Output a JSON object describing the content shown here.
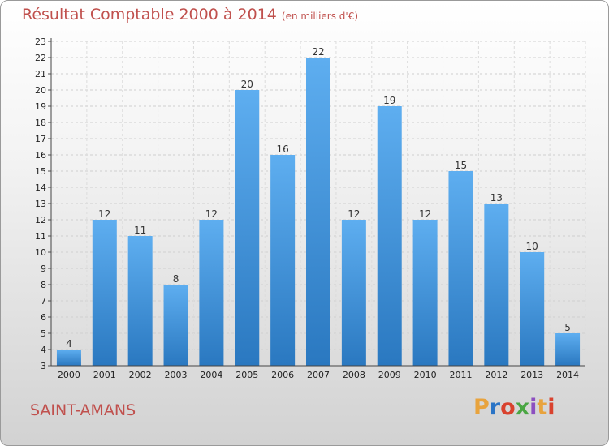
{
  "header": {
    "title": "Résultat Comptable 2000 à 2014",
    "subtitle": "(en milliers d'€)"
  },
  "footer": {
    "commune": "SAINT-AMANS",
    "logo_text": "Proxiti",
    "logo_colors": [
      "#e8a33d",
      "#2a74c6",
      "#d9422e",
      "#4aa643",
      "#8c4fc0",
      "#e8a33d",
      "#d9422e"
    ]
  },
  "chart_data": {
    "type": "bar",
    "title": "Résultat Comptable 2000 à 2014",
    "categories": [
      "2000",
      "2001",
      "2002",
      "2003",
      "2004",
      "2005",
      "2006",
      "2007",
      "2008",
      "2009",
      "2010",
      "2011",
      "2012",
      "2013",
      "2014"
    ],
    "values": [
      4,
      12,
      11,
      8,
      12,
      20,
      16,
      22,
      12,
      19,
      12,
      15,
      13,
      10,
      5
    ],
    "ylim": [
      3,
      23
    ],
    "yticks": [
      3,
      4,
      5,
      6,
      7,
      8,
      9,
      10,
      11,
      12,
      13,
      14,
      15,
      16,
      17,
      18,
      19,
      20,
      21,
      22,
      23
    ],
    "grid": true,
    "bar_color": "#4a98dc"
  }
}
